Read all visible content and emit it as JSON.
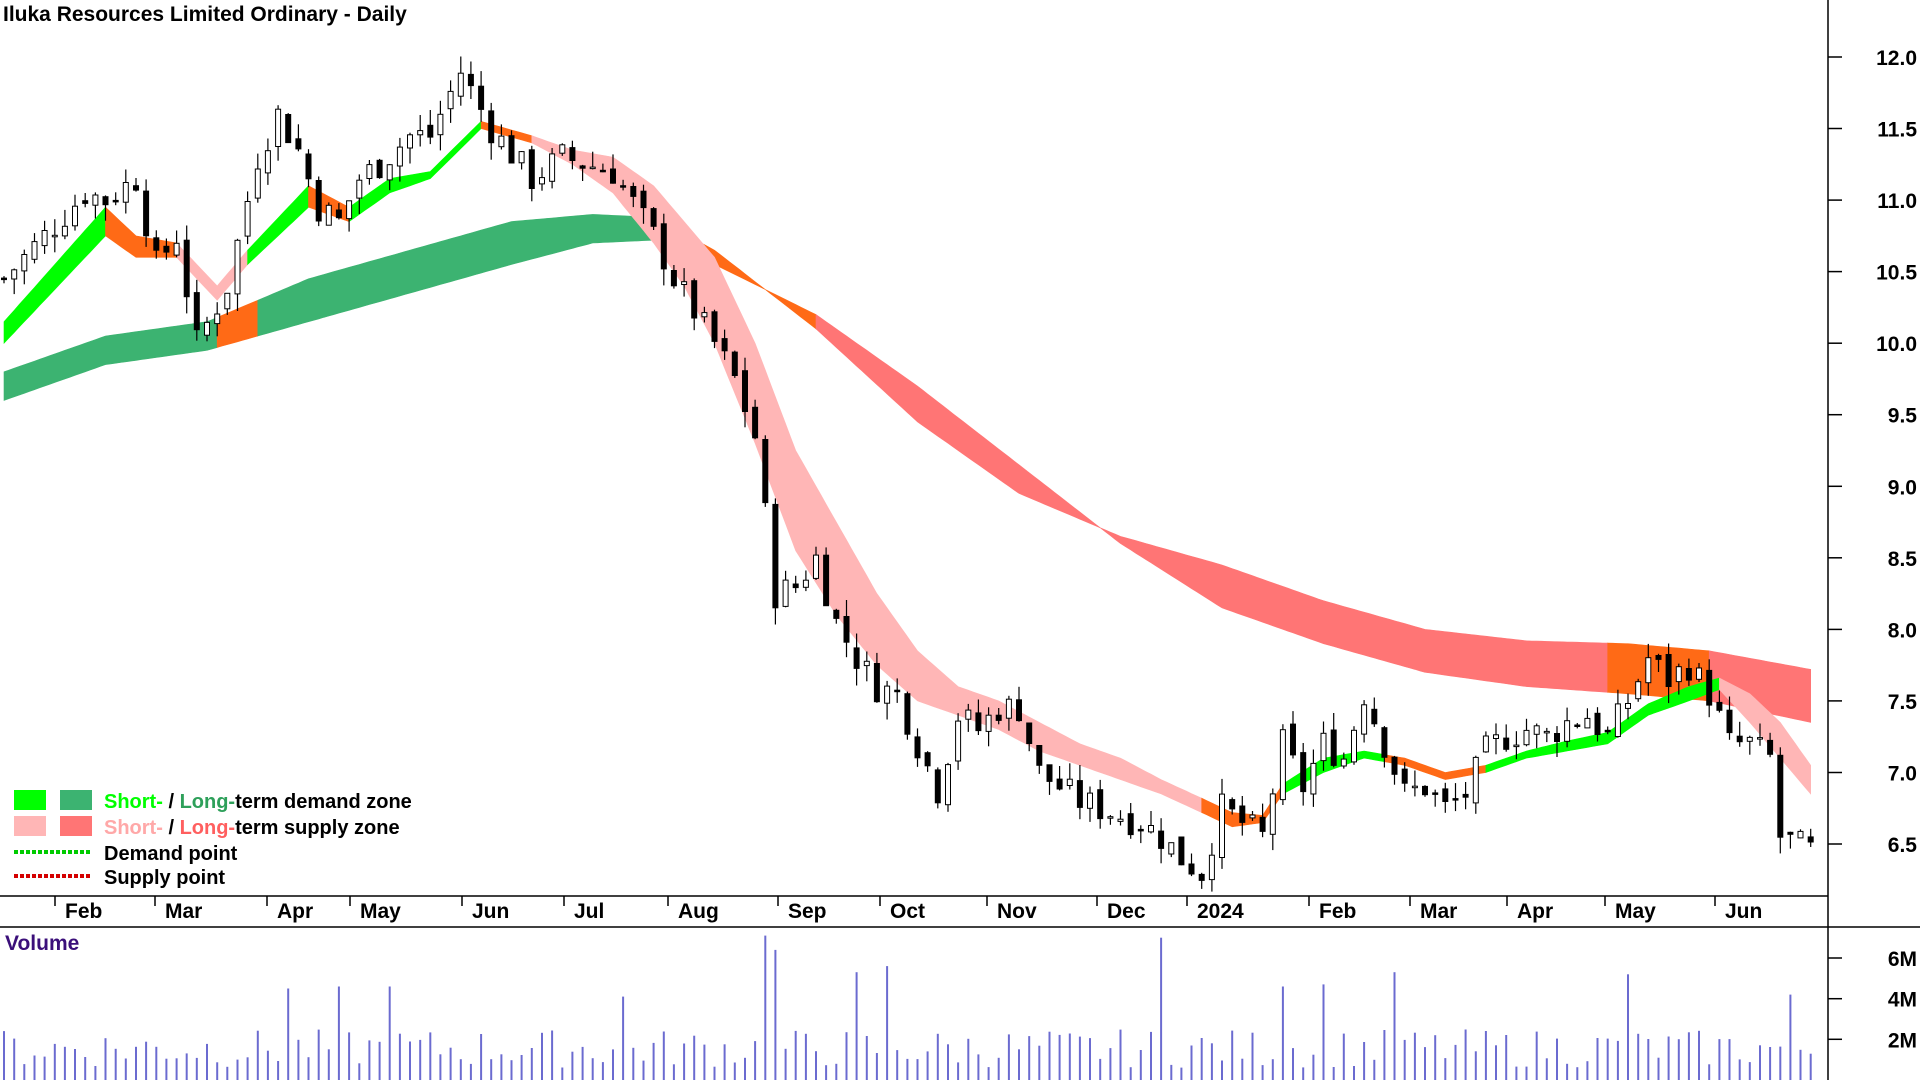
{
  "chart_data": [
    {
      "type": "candlestick",
      "title": "Iluka Resources Limited Ordinary - Daily",
      "x_tick_labels": [
        "Feb",
        "Mar",
        "Apr",
        "May",
        "Jun",
        "Jul",
        "Aug",
        "Sep",
        "Oct",
        "Nov",
        "Dec",
        "2024",
        "Feb",
        "Mar",
        "Apr",
        "May",
        "Jun"
      ],
      "y_ticks": [
        6.5,
        7.0,
        7.5,
        8.0,
        8.5,
        9.0,
        9.5,
        10.0,
        10.5,
        11.0,
        11.5,
        12.0
      ],
      "y_tick_labels": [
        "6.5",
        "7.0",
        "7.5",
        "8.0",
        "8.5",
        "9.0",
        "9.5",
        "10.0",
        "10.5",
        "11.0",
        "11.5",
        "12.0"
      ],
      "ylim": [
        6.15,
        12.4
      ],
      "price_path": [
        [
          0,
          10.45
        ],
        [
          8,
          11.05
        ],
        [
          10,
          11.0
        ],
        [
          13,
          11.15
        ],
        [
          15,
          10.55
        ],
        [
          17,
          10.75
        ],
        [
          19,
          10.0
        ],
        [
          22,
          10.4
        ],
        [
          25,
          11.3
        ],
        [
          27,
          11.6
        ],
        [
          29,
          11.35
        ],
        [
          31,
          10.95
        ],
        [
          33,
          10.85
        ],
        [
          35,
          11.15
        ],
        [
          37,
          11.25
        ],
        [
          40,
          11.45
        ],
        [
          42,
          11.45
        ],
        [
          45,
          11.9
        ],
        [
          48,
          11.5
        ],
        [
          52,
          11.15
        ],
        [
          55,
          11.3
        ],
        [
          60,
          11.2
        ],
        [
          64,
          10.75
        ],
        [
          66,
          10.45
        ],
        [
          70,
          10.0
        ],
        [
          72,
          9.75
        ],
        [
          74,
          9.35
        ],
        [
          76,
          8.25
        ],
        [
          78,
          8.3
        ],
        [
          80,
          8.5
        ],
        [
          82,
          8.05
        ],
        [
          84,
          7.8
        ],
        [
          86,
          7.6
        ],
        [
          88,
          7.55
        ],
        [
          90,
          7.2
        ],
        [
          92,
          6.88
        ],
        [
          94,
          7.4
        ],
        [
          96,
          7.3
        ],
        [
          98,
          7.45
        ],
        [
          100,
          7.45
        ],
        [
          102,
          7.0
        ],
        [
          104,
          6.9
        ],
        [
          106,
          6.8
        ],
        [
          108,
          6.75
        ],
        [
          110,
          6.7
        ],
        [
          112,
          6.65
        ],
        [
          114,
          6.55
        ],
        [
          116,
          6.4
        ],
        [
          118,
          6.3
        ],
        [
          120,
          6.75
        ],
        [
          122,
          6.65
        ],
        [
          124,
          6.55
        ],
        [
          126,
          7.2
        ],
        [
          128,
          6.9
        ],
        [
          130,
          7.2
        ],
        [
          132,
          7.1
        ],
        [
          134,
          7.55
        ],
        [
          136,
          7.2
        ],
        [
          138,
          6.85
        ],
        [
          140,
          6.9
        ],
        [
          142,
          6.75
        ],
        [
          144,
          6.85
        ],
        [
          146,
          7.15
        ],
        [
          148,
          7.25
        ],
        [
          150,
          7.3
        ],
        [
          152,
          7.25
        ],
        [
          154,
          7.35
        ],
        [
          156,
          7.4
        ],
        [
          158,
          7.25
        ],
        [
          160,
          7.5
        ],
        [
          162,
          7.8
        ],
        [
          164,
          7.65
        ],
        [
          166,
          7.75
        ],
        [
          168,
          7.55
        ],
        [
          170,
          7.2
        ],
        [
          172,
          7.2
        ],
        [
          174,
          7.1
        ],
        [
          175,
          6.55
        ],
        [
          178,
          6.45
        ]
      ],
      "zones": [
        {
          "name": "Short-term demand zone",
          "color": "#00ff00"
        },
        {
          "name": "Long-term demand zone",
          "color": "#3cb371"
        },
        {
          "name": "Short-term supply zone",
          "color": "#ffb6b6"
        },
        {
          "name": "Long-term supply zone",
          "color": "#ff7575"
        }
      ],
      "short_term_band": {
        "lower": [
          [
            0,
            10.0
          ],
          [
            10,
            10.75
          ],
          [
            13,
            10.6
          ],
          [
            17,
            10.6
          ],
          [
            21,
            10.3
          ],
          [
            24,
            10.55
          ],
          [
            30,
            10.95
          ],
          [
            34,
            10.85
          ],
          [
            38,
            11.05
          ],
          [
            42,
            11.15
          ],
          [
            47,
            11.5
          ],
          [
            52,
            11.4
          ],
          [
            56,
            11.25
          ],
          [
            60,
            11.05
          ],
          [
            64,
            10.7
          ],
          [
            67,
            10.4
          ],
          [
            70,
            10.0
          ],
          [
            74,
            9.3
          ],
          [
            78,
            8.55
          ],
          [
            82,
            8.1
          ],
          [
            86,
            7.75
          ],
          [
            90,
            7.5
          ],
          [
            94,
            7.4
          ],
          [
            98,
            7.3
          ],
          [
            102,
            7.15
          ],
          [
            106,
            7.05
          ],
          [
            110,
            6.95
          ],
          [
            114,
            6.85
          ],
          [
            118,
            6.72
          ],
          [
            121,
            6.62
          ],
          [
            124,
            6.65
          ],
          [
            126,
            6.85
          ],
          [
            130,
            7.0
          ],
          [
            134,
            7.1
          ],
          [
            138,
            7.05
          ],
          [
            142,
            6.95
          ],
          [
            146,
            7.0
          ],
          [
            150,
            7.1
          ],
          [
            154,
            7.15
          ],
          [
            158,
            7.2
          ],
          [
            162,
            7.4
          ],
          [
            166,
            7.5
          ],
          [
            169,
            7.58
          ],
          [
            172,
            7.35
          ],
          [
            175,
            7.1
          ],
          [
            178,
            6.85
          ]
        ],
        "upper": [
          [
            0,
            10.15
          ],
          [
            10,
            10.95
          ],
          [
            13,
            10.75
          ],
          [
            17,
            10.7
          ],
          [
            21,
            10.4
          ],
          [
            24,
            10.65
          ],
          [
            30,
            11.1
          ],
          [
            34,
            10.95
          ],
          [
            38,
            11.15
          ],
          [
            42,
            11.2
          ],
          [
            47,
            11.55
          ],
          [
            52,
            11.45
          ],
          [
            56,
            11.35
          ],
          [
            60,
            11.3
          ],
          [
            64,
            11.1
          ],
          [
            67,
            10.85
          ],
          [
            70,
            10.6
          ],
          [
            74,
            10.0
          ],
          [
            78,
            9.25
          ],
          [
            82,
            8.75
          ],
          [
            86,
            8.25
          ],
          [
            90,
            7.85
          ],
          [
            94,
            7.6
          ],
          [
            98,
            7.5
          ],
          [
            102,
            7.35
          ],
          [
            106,
            7.2
          ],
          [
            110,
            7.1
          ],
          [
            114,
            6.95
          ],
          [
            118,
            6.82
          ],
          [
            121,
            6.72
          ],
          [
            124,
            6.7
          ],
          [
            126,
            6.92
          ],
          [
            130,
            7.1
          ],
          [
            134,
            7.15
          ],
          [
            138,
            7.1
          ],
          [
            142,
            7.0
          ],
          [
            146,
            7.05
          ],
          [
            150,
            7.15
          ],
          [
            154,
            7.22
          ],
          [
            158,
            7.28
          ],
          [
            162,
            7.48
          ],
          [
            166,
            7.6
          ],
          [
            169,
            7.66
          ],
          [
            172,
            7.55
          ],
          [
            175,
            7.35
          ],
          [
            178,
            7.05
          ]
        ],
        "segments": [
          {
            "from": 0,
            "to": 10,
            "zone": "demand"
          },
          {
            "from": 10,
            "to": 17,
            "zone": "transition"
          },
          {
            "from": 17,
            "to": 24,
            "zone": "supply"
          },
          {
            "from": 24,
            "to": 30,
            "zone": "demand"
          },
          {
            "from": 30,
            "to": 34,
            "zone": "transition"
          },
          {
            "from": 34,
            "to": 47,
            "zone": "demand"
          },
          {
            "from": 47,
            "to": 52,
            "zone": "transition"
          },
          {
            "from": 52,
            "to": 60,
            "zone": "supply"
          },
          {
            "from": 60,
            "to": 118,
            "zone": "supply"
          },
          {
            "from": 118,
            "to": 126,
            "zone": "transition"
          },
          {
            "from": 126,
            "to": 136,
            "zone": "demand"
          },
          {
            "from": 136,
            "to": 146,
            "zone": "transition"
          },
          {
            "from": 146,
            "to": 169,
            "zone": "demand"
          },
          {
            "from": 169,
            "to": 178,
            "zone": "supply"
          }
        ]
      },
      "long_term_band": {
        "lower": [
          [
            0,
            9.6
          ],
          [
            10,
            9.85
          ],
          [
            20,
            9.95
          ],
          [
            30,
            10.15
          ],
          [
            40,
            10.35
          ],
          [
            50,
            10.55
          ],
          [
            58,
            10.7
          ],
          [
            64,
            10.72
          ],
          [
            70,
            10.55
          ],
          [
            80,
            10.2
          ],
          [
            90,
            9.7
          ],
          [
            100,
            9.15
          ],
          [
            110,
            8.6
          ],
          [
            120,
            8.15
          ],
          [
            130,
            7.9
          ],
          [
            140,
            7.7
          ],
          [
            150,
            7.6
          ],
          [
            160,
            7.55
          ],
          [
            168,
            7.5
          ],
          [
            178,
            7.35
          ]
        ],
        "upper": [
          [
            0,
            9.8
          ],
          [
            10,
            10.05
          ],
          [
            20,
            10.15
          ],
          [
            30,
            10.45
          ],
          [
            40,
            10.65
          ],
          [
            50,
            10.85
          ],
          [
            58,
            10.9
          ],
          [
            64,
            10.88
          ],
          [
            70,
            10.65
          ],
          [
            80,
            10.1
          ],
          [
            90,
            9.45
          ],
          [
            100,
            8.95
          ],
          [
            110,
            8.65
          ],
          [
            120,
            8.45
          ],
          [
            130,
            8.2
          ],
          [
            140,
            8.0
          ],
          [
            150,
            7.92
          ],
          [
            160,
            7.9
          ],
          [
            168,
            7.85
          ],
          [
            178,
            7.72
          ]
        ],
        "segments": [
          {
            "from": 0,
            "to": 21,
            "zone": "demand"
          },
          {
            "from": 21,
            "to": 25,
            "zone": "transition"
          },
          {
            "from": 25,
            "to": 64,
            "zone": "demand"
          },
          {
            "from": 64,
            "to": 80,
            "zone": "transition"
          },
          {
            "from": 80,
            "to": 158,
            "zone": "supply"
          },
          {
            "from": 158,
            "to": 168,
            "zone": "transition"
          },
          {
            "from": 168,
            "to": 178,
            "zone": "supply"
          }
        ]
      }
    },
    {
      "type": "bar",
      "title": "Volume",
      "y_ticks": [
        2000000,
        4000000,
        6000000
      ],
      "y_tick_labels": [
        "2M",
        "4M",
        "6M"
      ],
      "ylim": [
        0,
        7200000
      ],
      "bar_color": "#6b6bd0",
      "peaks": [
        [
          28,
          4.5
        ],
        [
          33,
          4.6
        ],
        [
          38,
          4.6
        ],
        [
          61,
          4.1
        ],
        [
          75,
          7.1
        ],
        [
          76,
          6.4
        ],
        [
          84,
          5.3
        ],
        [
          87,
          5.6
        ],
        [
          114,
          7.0
        ],
        [
          126,
          4.6
        ],
        [
          130,
          4.7
        ],
        [
          137,
          5.3
        ],
        [
          160,
          5.2
        ],
        [
          176,
          4.2
        ]
      ]
    }
  ],
  "legend": {
    "demand_zone": {
      "short": "Short-",
      "sep": " / ",
      "long": "Long-",
      "rest": "term demand zone"
    },
    "supply_zone": {
      "short": "Short-",
      "sep": " / ",
      "long": "Long-",
      "rest": "term supply zone"
    },
    "demand_point": "Demand point",
    "supply_point": "Supply point"
  },
  "colors": {
    "short_demand": "#00ff00",
    "long_demand": "#3cb371",
    "short_supply": "#ffb6b6",
    "long_supply": "#ff7575",
    "transition": "#ff6a16",
    "demand_point": "#00cc00",
    "supply_point": "#d40000",
    "long_demand_text": "#2ea05a",
    "short_supply_text": "#ffa8a8",
    "long_supply_text": "#ff5f5f"
  }
}
